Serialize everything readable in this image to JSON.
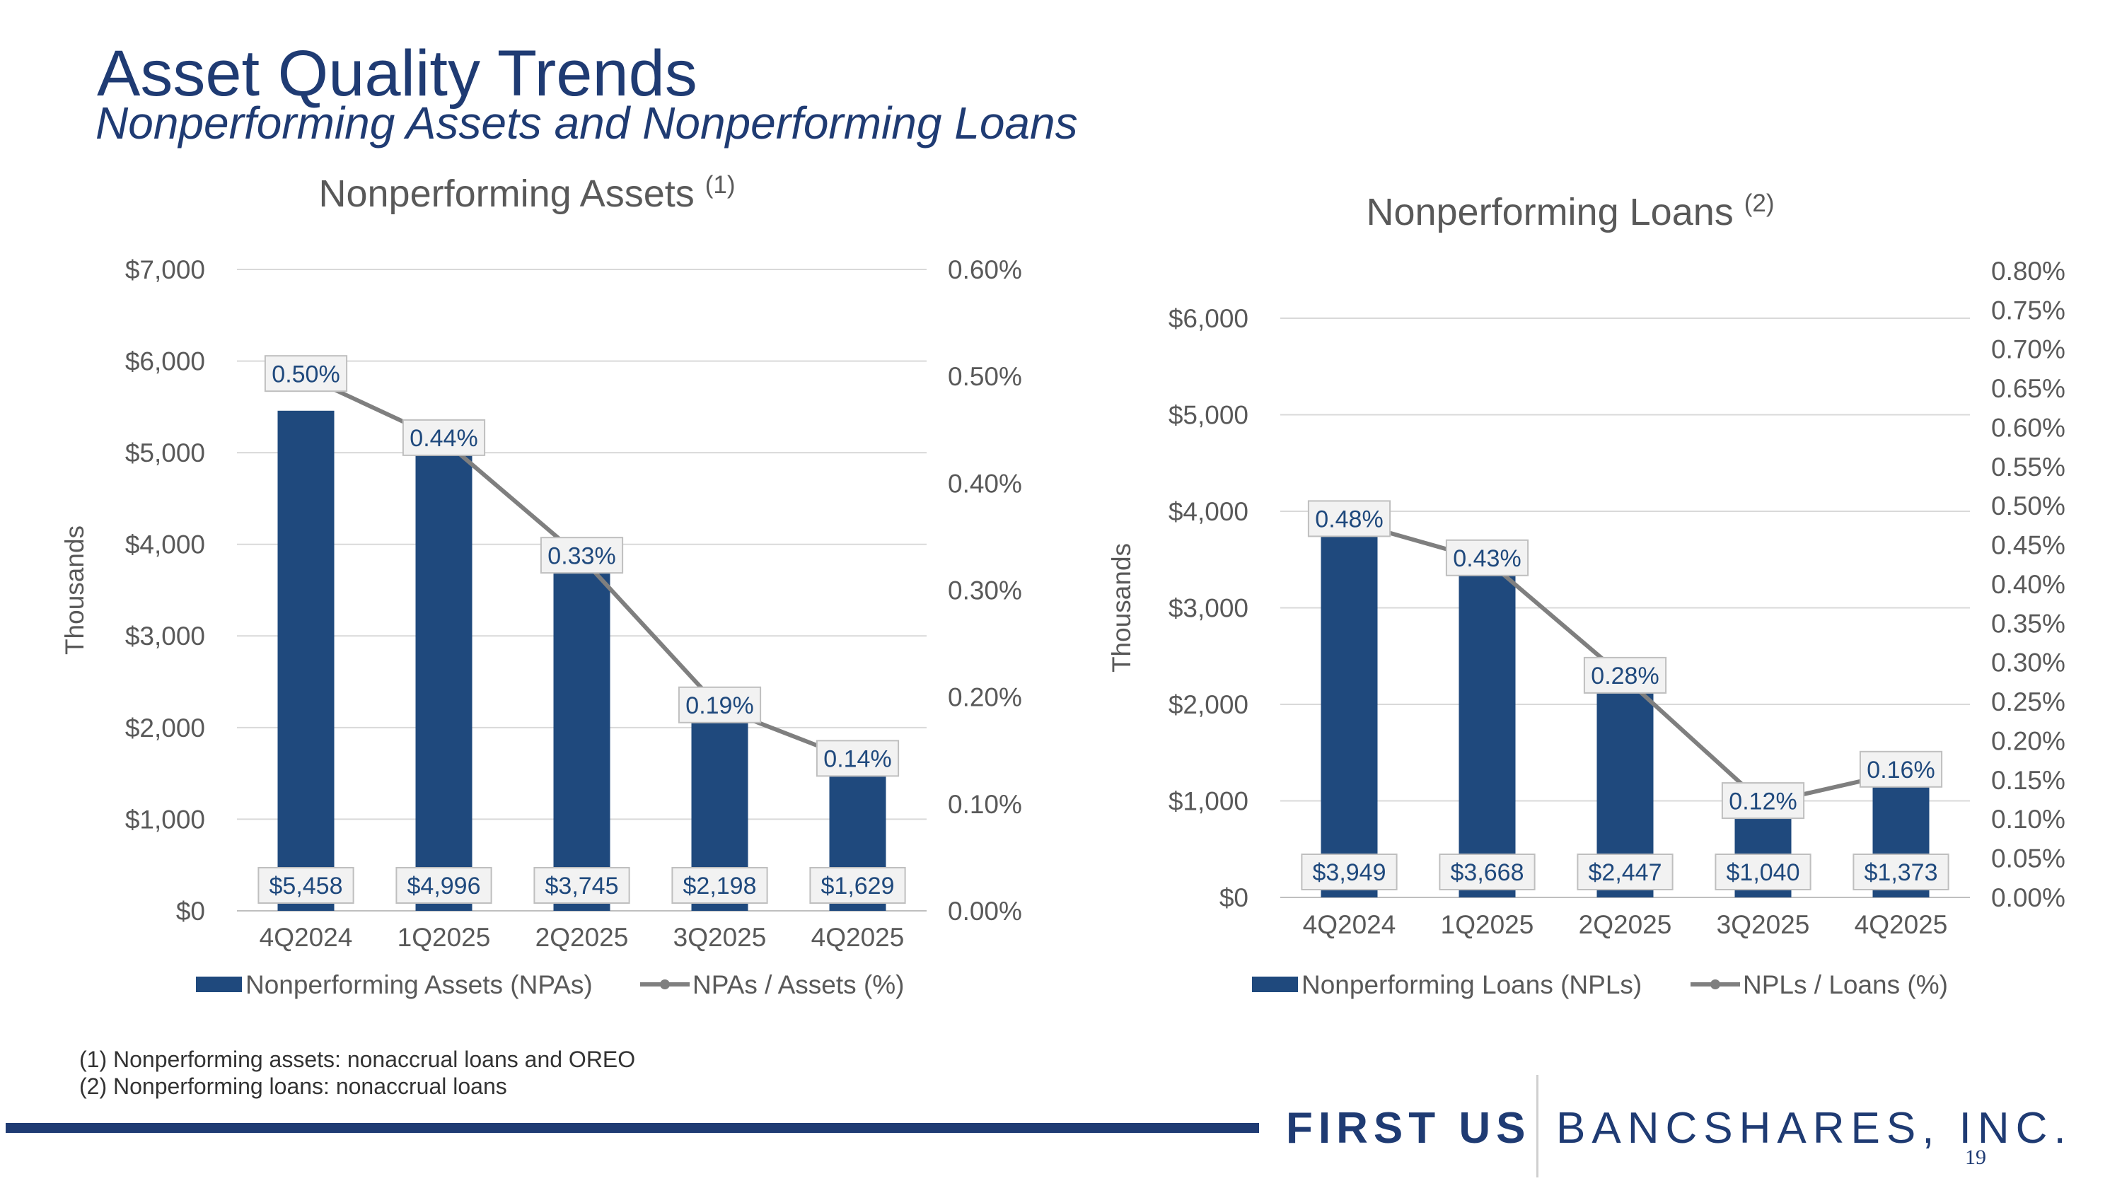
{
  "page": {
    "title": "Asset Quality Trends",
    "subtitle": "Nonperforming Assets and Nonperforming Loans",
    "footnotes": [
      "(1)  Nonperforming assets: nonaccrual loans and OREO",
      "(2)  Nonperforming loans: nonaccrual loans"
    ],
    "logo_first": "FIRST US",
    "logo_banc": "BANCSHARES, INC.",
    "page_number": "19"
  },
  "colors": {
    "bar": "#1f497d",
    "line": "#7f7f7f",
    "text": "#595959",
    "title": "#1f3b73",
    "grid": "#d9d9d9"
  },
  "chart_data": [
    {
      "type": "bar",
      "title": "Nonperforming Assets",
      "title_sup": "(1)",
      "categories": [
        "4Q2024",
        "1Q2025",
        "2Q2025",
        "3Q2025",
        "4Q2025"
      ],
      "ylabel": "Thousands",
      "ylim": [
        0,
        7000
      ],
      "yticks": [
        0,
        1000,
        2000,
        3000,
        4000,
        5000,
        6000,
        7000
      ],
      "ytick_labels": [
        "$0",
        "$1,000",
        "$2,000",
        "$3,000",
        "$4,000",
        "$5,000",
        "$6,000",
        "$7,000"
      ],
      "y2lim": [
        0,
        0.6
      ],
      "y2ticks": [
        0,
        0.1,
        0.2,
        0.3,
        0.4,
        0.5,
        0.6
      ],
      "y2tick_labels": [
        "0.00%",
        "0.10%",
        "0.20%",
        "0.30%",
        "0.40%",
        "0.50%",
        "0.60%"
      ],
      "series": [
        {
          "name": "Nonperforming Assets (NPAs)",
          "kind": "bar",
          "axis": "left",
          "values": [
            5458,
            4996,
            3745,
            2198,
            1629
          ],
          "labels": [
            "$5,458",
            "$4,996",
            "$3,745",
            "$2,198",
            "$1,629"
          ]
        },
        {
          "name": "NPAs / Assets (%)",
          "kind": "line",
          "axis": "right",
          "values": [
            0.5,
            0.44,
            0.33,
            0.19,
            0.14
          ],
          "labels": [
            "0.50%",
            "0.44%",
            "0.33%",
            "0.19%",
            "0.14%"
          ]
        }
      ],
      "legend": "bottom"
    },
    {
      "type": "bar",
      "title": "Nonperforming Loans",
      "title_sup": "(2)",
      "categories": [
        "4Q2024",
        "1Q2025",
        "2Q2025",
        "3Q2025",
        "4Q2025"
      ],
      "ylabel": "Thousands",
      "ylim": [
        0,
        6000
      ],
      "yticks": [
        0,
        1000,
        2000,
        3000,
        4000,
        5000,
        6000
      ],
      "ytick_labels": [
        "$0",
        "$1,000",
        "$2,000",
        "$3,000",
        "$4,000",
        "$5,000",
        "$6,000"
      ],
      "y2lim": [
        0,
        0.8
      ],
      "y2ticks": [
        0,
        0.05,
        0.1,
        0.15,
        0.2,
        0.25,
        0.3,
        0.35,
        0.4,
        0.45,
        0.5,
        0.55,
        0.6,
        0.65,
        0.7,
        0.75,
        0.8
      ],
      "y2tick_labels": [
        "0.00%",
        "0.05%",
        "0.10%",
        "0.15%",
        "0.20%",
        "0.25%",
        "0.30%",
        "0.35%",
        "0.40%",
        "0.45%",
        "0.50%",
        "0.55%",
        "0.60%",
        "0.65%",
        "0.70%",
        "0.75%",
        "0.80%"
      ],
      "series": [
        {
          "name": "Nonperforming Loans (NPLs)",
          "kind": "bar",
          "axis": "left",
          "values": [
            3949,
            3668,
            2447,
            1040,
            1373
          ],
          "labels": [
            "$3,949",
            "$3,668",
            "$2,447",
            "$1,040",
            "$1,373"
          ]
        },
        {
          "name": "NPLs / Loans (%)",
          "kind": "line",
          "axis": "right",
          "values": [
            0.48,
            0.43,
            0.28,
            0.12,
            0.16
          ],
          "labels": [
            "0.48%",
            "0.43%",
            "0.28%",
            "0.12%",
            "0.16%"
          ]
        }
      ],
      "legend": "bottom"
    }
  ]
}
